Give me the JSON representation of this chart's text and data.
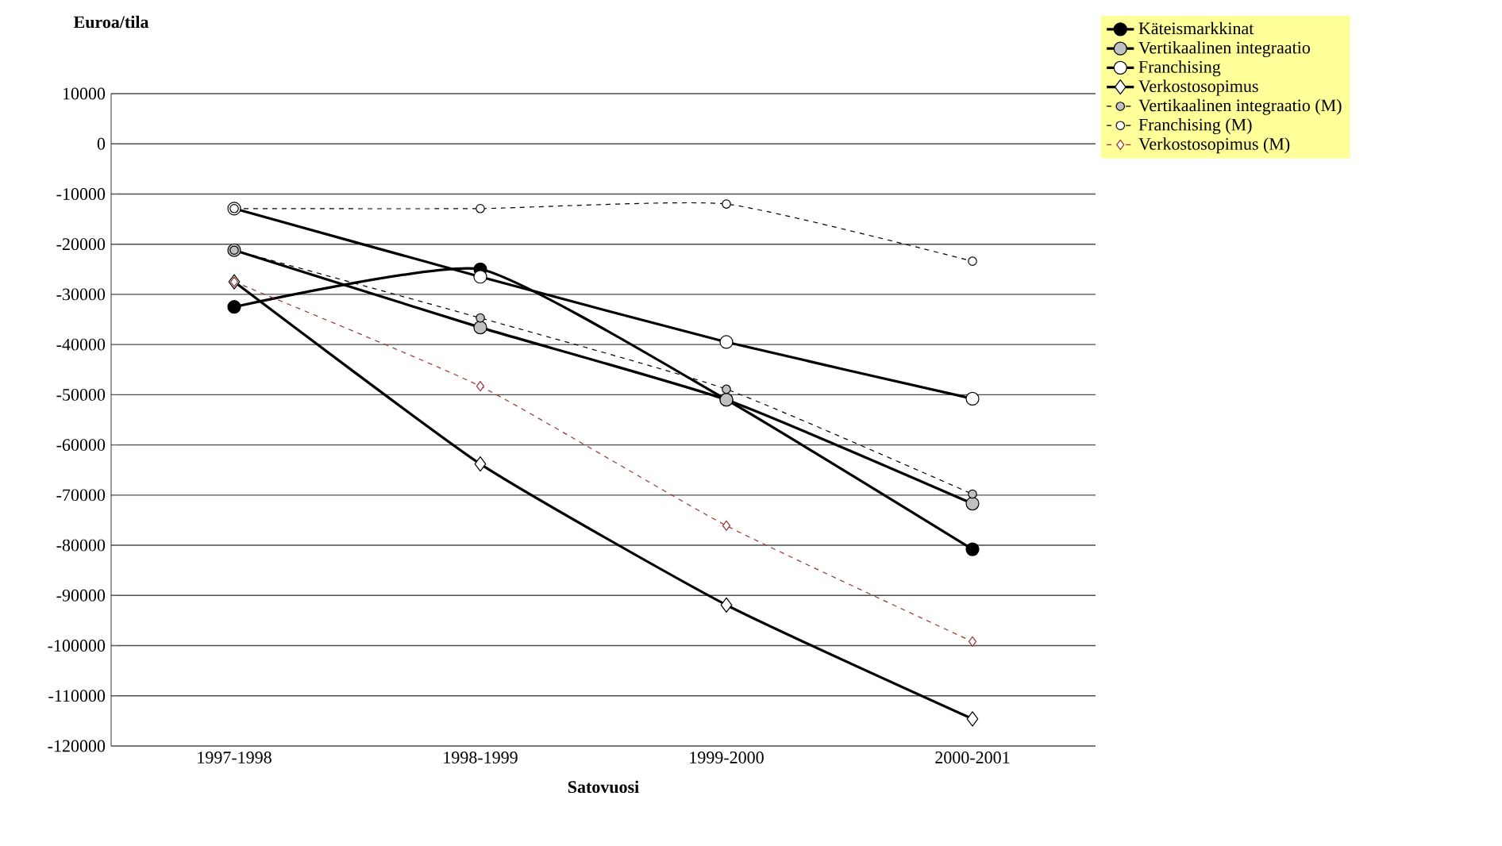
{
  "chart_data": {
    "type": "line",
    "xlabel": "Satovuosi",
    "ylabel": "Euroa/tila",
    "categories": [
      "1997-1998",
      "1998-1999",
      "1999-2000",
      "2000-2001"
    ],
    "series": [
      {
        "name": "Käteismarkkinat",
        "color": "#000000",
        "marker": "circle",
        "line_style": "solid",
        "values": [
          -32500,
          -25000,
          -51000,
          -80800
        ]
      },
      {
        "name": "Vertikaalinen integraatio",
        "color": "#c0c0c0",
        "marker": "circle",
        "line_style": "solid",
        "values": [
          -21200,
          -36600,
          -51000,
          -71700
        ]
      },
      {
        "name": "Franchising",
        "color": "#ffffff",
        "marker": "circle",
        "line_style": "solid",
        "values": [
          -12900,
          -26500,
          -39500,
          -50800
        ]
      },
      {
        "name": "Verkostosopimus",
        "color": "#ffffff",
        "marker": "diamond",
        "line_style": "solid",
        "values": [
          -27500,
          -63800,
          -91900,
          -114600
        ]
      },
      {
        "name": "Vertikaalinen integraatio (M)",
        "color": "#c0c0c0",
        "marker": "circle",
        "line_style": "dashed",
        "values": [
          -21200,
          -34700,
          -48900,
          -69800
        ]
      },
      {
        "name": "Franchising (M)",
        "color": "#ffffff",
        "marker": "circle",
        "line_style": "dashed",
        "values": [
          -12900,
          -12900,
          -12000,
          -23400
        ]
      },
      {
        "name": "Verkostosopimus (M)",
        "color": "#993333",
        "marker": "diamond",
        "line_style": "dashed",
        "values": [
          -27500,
          -48300,
          -76100,
          -99200
        ]
      }
    ],
    "ylim": [
      -120000,
      10000
    ],
    "yticks": [
      -120000,
      -110000,
      -100000,
      -90000,
      -80000,
      -70000,
      -60000,
      -50000,
      -40000,
      -30000,
      -20000,
      -10000,
      0,
      10000
    ],
    "grid": "y",
    "legend": "top right"
  }
}
